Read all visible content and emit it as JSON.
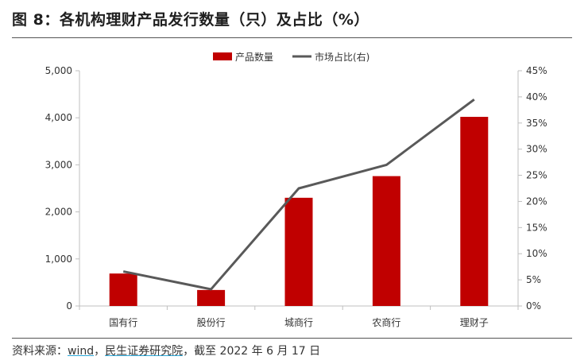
{
  "figure": {
    "title": "图 8：各机构理财产品发行数量（只）及占比（%）",
    "source_prefix": "资料来源：",
    "source_name_wind": "wind",
    "source_sep": "，",
    "source_name_msyj": "民生证券研究院",
    "source_suffix": "，截至 2022 年 6 月 17 日"
  },
  "chart_data": {
    "type": "bar+line",
    "categories": [
      "国有行",
      "股份行",
      "城商行",
      "农商行",
      "理财子"
    ],
    "series": [
      {
        "name": "产品数量",
        "type": "bar",
        "axis": "left",
        "color": "#c00000",
        "values": [
          690,
          340,
          2300,
          2760,
          4020
        ]
      },
      {
        "name": "市场占比(右)",
        "type": "line",
        "axis": "right",
        "color": "#595959",
        "values": [
          6.6,
          3.2,
          22.5,
          27.0,
          39.5
        ]
      }
    ],
    "left_axis": {
      "ylim": [
        0,
        5000
      ],
      "ticks": [
        0,
        1000,
        2000,
        3000,
        4000,
        5000
      ],
      "tick_labels": [
        "0",
        "1,000",
        "2,000",
        "3,000",
        "4,000",
        "5,000"
      ]
    },
    "right_axis": {
      "ylim": [
        0,
        45
      ],
      "ticks": [
        0,
        5,
        10,
        15,
        20,
        25,
        30,
        35,
        40,
        45
      ],
      "tick_labels": [
        "0%",
        "5%",
        "10%",
        "15%",
        "20%",
        "25%",
        "30%",
        "35%",
        "40%",
        "45%"
      ]
    },
    "legend": {
      "position": "top-center",
      "items": [
        "产品数量",
        "市场占比(右)"
      ]
    },
    "grid": false
  }
}
